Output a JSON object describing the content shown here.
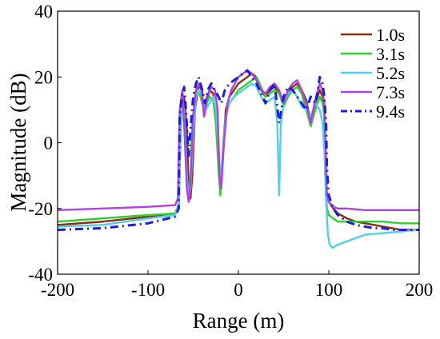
{
  "chart_data": {
    "type": "line",
    "title": "",
    "xlabel": "Range (m)",
    "ylabel": "Magnitude (dB)",
    "xlim": [
      -200,
      200
    ],
    "ylim": [
      -40,
      40
    ],
    "xticks": [
      "-200",
      "-100",
      "0",
      "100",
      "200"
    ],
    "yticks": [
      "40",
      "20",
      "0",
      "-20",
      "-40"
    ],
    "grid": false,
    "legend_position": "top-right",
    "series": [
      {
        "name": "1.0s",
        "color": "#8B2E13",
        "dash": "solid",
        "x": [
          -200,
          -150,
          -100,
          -70,
          -66,
          -65,
          -62,
          -60,
          -57,
          -55,
          -53,
          -51,
          -48,
          -45,
          -42,
          -40,
          -38,
          -35,
          -32,
          -28,
          -25,
          -22,
          -20,
          -17,
          -14,
          -10,
          -5,
          0,
          5,
          10,
          15,
          20,
          25,
          30,
          35,
          40,
          45,
          50,
          55,
          60,
          65,
          70,
          75,
          80,
          85,
          90,
          93,
          95,
          96,
          98,
          100,
          105,
          110,
          120,
          130,
          140,
          150,
          160,
          170,
          180,
          190,
          200
        ],
        "y": [
          -25,
          -24,
          -22.5,
          -21.5,
          -19,
          0,
          12,
          14,
          4,
          -14,
          -17,
          -10,
          10,
          16,
          18,
          16,
          8,
          12,
          16,
          15,
          8,
          -5,
          -15,
          -2,
          10,
          14,
          16,
          18,
          19,
          20,
          21,
          20,
          16,
          14,
          16,
          17,
          15,
          12,
          15,
          17,
          18,
          16,
          13,
          6,
          12,
          16,
          14,
          10,
          -10,
          -16,
          -18,
          -20,
          -21.5,
          -23,
          -24,
          -24.5,
          -25,
          -25.5,
          -26,
          -26.5,
          -26.5,
          -26.5
        ]
      },
      {
        "name": "3.1s",
        "color": "#33CC33",
        "dash": "solid",
        "x": [
          -200,
          -150,
          -100,
          -70,
          -66,
          -64,
          -62,
          -60,
          -57,
          -55,
          -53,
          -51,
          -48,
          -45,
          -42,
          -38,
          -35,
          -32,
          -28,
          -25,
          -22,
          -20,
          -17,
          -14,
          -10,
          -5,
          0,
          5,
          10,
          15,
          20,
          25,
          30,
          35,
          40,
          45,
          50,
          55,
          60,
          65,
          70,
          75,
          80,
          85,
          90,
          93,
          95,
          97,
          98,
          100,
          105,
          110,
          120,
          140,
          160,
          180,
          200
        ],
        "y": [
          -24,
          -23,
          -22,
          -21.5,
          -19,
          12,
          15,
          6,
          -12,
          -16,
          -10,
          6,
          14,
          16,
          14,
          10,
          12,
          14,
          13,
          6,
          -8,
          -16,
          -4,
          8,
          12,
          14,
          16,
          17,
          18,
          19,
          20,
          17,
          14,
          15,
          16,
          15,
          11,
          14,
          16,
          17,
          15,
          10,
          5,
          10,
          14,
          12,
          8,
          -16,
          -20,
          -22,
          -23,
          -24,
          -24,
          -24,
          -24,
          -24.5,
          -24.5
        ]
      },
      {
        "name": "5.2s",
        "color": "#55CCEE",
        "dash": "solid",
        "x": [
          -200,
          -150,
          -100,
          -70,
          -66,
          -64,
          -62,
          -60,
          -57,
          -55,
          -53,
          -50,
          -47,
          -44,
          -40,
          -36,
          -32,
          -28,
          -25,
          -22,
          -20,
          -17,
          -14,
          -10,
          -5,
          0,
          5,
          10,
          15,
          20,
          25,
          30,
          35,
          40,
          43,
          45,
          47,
          50,
          55,
          60,
          65,
          70,
          75,
          80,
          85,
          90,
          93,
          95,
          97,
          99,
          101,
          104,
          110,
          120,
          140,
          160,
          180,
          200
        ],
        "y": [
          -25.5,
          -25,
          -23,
          -22,
          -19,
          0,
          12,
          10,
          -10,
          -18,
          -14,
          2,
          14,
          16,
          14,
          10,
          12,
          14,
          10,
          0,
          -12,
          -2,
          8,
          12,
          14,
          15,
          16,
          17,
          18,
          17,
          14,
          12,
          13,
          14,
          6,
          -16,
          6,
          12,
          15,
          16,
          14,
          11,
          10,
          8,
          12,
          10,
          6,
          -2,
          -18,
          -28,
          -31,
          -32,
          -31,
          -30,
          -28,
          -27.5,
          -27,
          -26.5
        ]
      },
      {
        "name": "7.3s",
        "color": "#B040E0",
        "dash": "solid",
        "x": [
          -200,
          -150,
          -100,
          -70,
          -67,
          -65,
          -62,
          -60,
          -57,
          -55,
          -53,
          -50,
          -47,
          -44,
          -41,
          -38,
          -35,
          -30,
          -26,
          -23,
          -21,
          -19,
          -16,
          -12,
          -8,
          -4,
          0,
          5,
          10,
          15,
          20,
          25,
          30,
          35,
          40,
          45,
          50,
          55,
          60,
          65,
          70,
          75,
          80,
          85,
          90,
          93,
          95,
          97,
          98,
          100,
          105,
          110,
          120,
          140,
          160,
          180,
          200
        ],
        "y": [
          -20.5,
          -20,
          -19.5,
          -19,
          -17,
          10,
          16,
          6,
          -14,
          -18,
          -12,
          8,
          16,
          18,
          16,
          8,
          14,
          17,
          16,
          10,
          -10,
          -14,
          0,
          12,
          16,
          18,
          20,
          21,
          22,
          21,
          19,
          16,
          15,
          17,
          18,
          16,
          12,
          16,
          18,
          19,
          16,
          12,
          6,
          13,
          18,
          16,
          12,
          -6,
          -16,
          -18,
          -19.5,
          -20,
          -20,
          -20.5,
          -20.5,
          -20.5,
          -20.5
        ]
      },
      {
        "name": "9.4s",
        "color": "#1E1ED2",
        "dash": "dashdot",
        "x": [
          -200,
          -150,
          -100,
          -70,
          -66,
          -65,
          -62,
          -60,
          -58,
          -55,
          -53,
          -50,
          -47,
          -44,
          -40,
          -37,
          -34,
          -30,
          -26,
          -22,
          -19,
          -15,
          -10,
          -5,
          0,
          5,
          10,
          15,
          20,
          25,
          30,
          35,
          40,
          45,
          50,
          55,
          60,
          65,
          70,
          75,
          80,
          85,
          88,
          90,
          93,
          95,
          97,
          98,
          100,
          105,
          110,
          120,
          130,
          140,
          150,
          160,
          170,
          180,
          190,
          200
        ],
        "y": [
          -26.5,
          -26,
          -24.5,
          -22.5,
          -20,
          8,
          15,
          17,
          10,
          -4,
          4,
          14,
          18,
          20,
          16,
          12,
          16,
          18,
          16,
          14,
          12,
          16,
          18,
          19,
          20,
          21,
          22,
          20,
          18,
          15,
          12,
          16,
          18,
          6,
          14,
          17,
          16,
          14,
          12,
          10,
          14,
          12,
          16,
          20,
          18,
          14,
          6,
          -8,
          -16,
          -20,
          -22,
          -24,
          -25,
          -25.5,
          -26,
          -26,
          -26.5,
          -26.5,
          -26.5,
          -26.5
        ]
      }
    ]
  }
}
